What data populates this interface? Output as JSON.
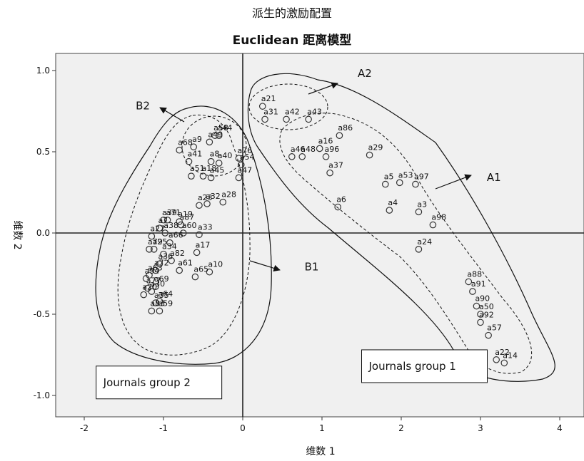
{
  "chart_data": {
    "type": "scatter",
    "title": "派生的激励配置",
    "subtitle": "Euclidean 距离模型",
    "xlabel": "维数 1",
    "ylabel": "维数 2",
    "xlim": [
      -2.2,
      4.2
    ],
    "ylim": [
      -1.1,
      1.1
    ],
    "xticks": [
      -2,
      -1,
      0,
      1,
      2,
      3,
      4
    ],
    "yticks": [
      -1.0,
      -0.5,
      0.0,
      0.5,
      1.0
    ],
    "xtick_labels": [
      "-2",
      "-1",
      "0",
      "1",
      "2",
      "3",
      "4"
    ],
    "ytick_labels": [
      "-1.0",
      "-0.5",
      "0.0",
      "0.5",
      "1.0"
    ],
    "grid": false,
    "background": "#f0f0f0",
    "marker_color": "#333333",
    "points": [
      {
        "label": "a21",
        "x": 0.25,
        "y": 0.78
      },
      {
        "label": "a31",
        "x": 0.28,
        "y": 0.7
      },
      {
        "label": "a42",
        "x": 0.55,
        "y": 0.7
      },
      {
        "label": "a43",
        "x": 0.83,
        "y": 0.7
      },
      {
        "label": "a86",
        "x": 1.22,
        "y": 0.6
      },
      {
        "label": "a16",
        "x": 0.97,
        "y": 0.52
      },
      {
        "label": "a96",
        "x": 1.05,
        "y": 0.47
      },
      {
        "label": "a29",
        "x": 1.6,
        "y": 0.48
      },
      {
        "label": "a46",
        "x": 0.62,
        "y": 0.47
      },
      {
        "label": "a48",
        "x": 0.75,
        "y": 0.47
      },
      {
        "label": "a37",
        "x": 1.1,
        "y": 0.37
      },
      {
        "label": "a5",
        "x": 1.8,
        "y": 0.3
      },
      {
        "label": "a53",
        "x": 1.98,
        "y": 0.31
      },
      {
        "label": "a97",
        "x": 2.18,
        "y": 0.3
      },
      {
        "label": "a4",
        "x": 1.85,
        "y": 0.14
      },
      {
        "label": "a6",
        "x": 1.2,
        "y": 0.16
      },
      {
        "label": "a3",
        "x": 2.22,
        "y": 0.13
      },
      {
        "label": "a98",
        "x": 2.4,
        "y": 0.05
      },
      {
        "label": "a24",
        "x": 2.22,
        "y": -0.1
      },
      {
        "label": "a88",
        "x": 2.85,
        "y": -0.3
      },
      {
        "label": "a91",
        "x": 2.9,
        "y": -0.36
      },
      {
        "label": "a90",
        "x": 2.95,
        "y": -0.45
      },
      {
        "label": "a50",
        "x": 3.0,
        "y": -0.5
      },
      {
        "label": "a92",
        "x": 3.0,
        "y": -0.55
      },
      {
        "label": "a57",
        "x": 3.1,
        "y": -0.63
      },
      {
        "label": "a22",
        "x": 3.2,
        "y": -0.78
      },
      {
        "label": "a14",
        "x": 3.3,
        "y": -0.8
      },
      {
        "label": "a9",
        "x": -0.62,
        "y": 0.53
      },
      {
        "label": "a58",
        "x": -0.35,
        "y": 0.6
      },
      {
        "label": "a49",
        "x": -0.42,
        "y": 0.56
      },
      {
        "label": "a44",
        "x": -0.3,
        "y": 0.6
      },
      {
        "label": "a68",
        "x": -0.8,
        "y": 0.51
      },
      {
        "label": "a8",
        "x": -0.4,
        "y": 0.44
      },
      {
        "label": "a40",
        "x": -0.3,
        "y": 0.43
      },
      {
        "label": "a76",
        "x": -0.05,
        "y": 0.46
      },
      {
        "label": "a41",
        "x": -0.68,
        "y": 0.44
      },
      {
        "label": "a51",
        "x": -0.65,
        "y": 0.35
      },
      {
        "label": "a18",
        "x": -0.5,
        "y": 0.35
      },
      {
        "label": "a54",
        "x": -0.02,
        "y": 0.42
      },
      {
        "label": "a45",
        "x": -0.4,
        "y": 0.34
      },
      {
        "label": "a47",
        "x": -0.05,
        "y": 0.34
      },
      {
        "label": "a23",
        "x": -0.55,
        "y": 0.17
      },
      {
        "label": "a32",
        "x": -0.45,
        "y": 0.18
      },
      {
        "label": "a28",
        "x": -0.25,
        "y": 0.19
      },
      {
        "label": "a39",
        "x": -1.0,
        "y": 0.08
      },
      {
        "label": "a71",
        "x": -0.95,
        "y": 0.08
      },
      {
        "label": "a19",
        "x": -0.8,
        "y": 0.07
      },
      {
        "label": "a87",
        "x": -0.78,
        "y": 0.05
      },
      {
        "label": "a7",
        "x": -1.05,
        "y": 0.03
      },
      {
        "label": "a38",
        "x": -0.98,
        "y": 0.0
      },
      {
        "label": "a60",
        "x": -0.75,
        "y": 0.0
      },
      {
        "label": "a27",
        "x": -1.15,
        "y": -0.02
      },
      {
        "label": "a66",
        "x": -0.92,
        "y": -0.06
      },
      {
        "label": "a33",
        "x": -0.55,
        "y": -0.01
      },
      {
        "label": "a79",
        "x": -1.18,
        "y": -0.1
      },
      {
        "label": "a25",
        "x": -1.12,
        "y": -0.1
      },
      {
        "label": "a34",
        "x": -1.0,
        "y": -0.13
      },
      {
        "label": "a82",
        "x": -0.9,
        "y": -0.17
      },
      {
        "label": "a36",
        "x": -1.05,
        "y": -0.19
      },
      {
        "label": "a17",
        "x": -0.58,
        "y": -0.12
      },
      {
        "label": "a72",
        "x": -1.1,
        "y": -0.23
      },
      {
        "label": "a63",
        "x": -1.18,
        "y": -0.26
      },
      {
        "label": "a94",
        "x": -1.22,
        "y": -0.28
      },
      {
        "label": "a61",
        "x": -0.8,
        "y": -0.23
      },
      {
        "label": "a10",
        "x": -0.42,
        "y": -0.24
      },
      {
        "label": "a69",
        "x": -1.1,
        "y": -0.33
      },
      {
        "label": "a65",
        "x": -0.6,
        "y": -0.27
      },
      {
        "label": "a77",
        "x": -1.2,
        "y": -0.34
      },
      {
        "label": "a30",
        "x": -1.15,
        "y": -0.36
      },
      {
        "label": "a20",
        "x": -1.25,
        "y": -0.38
      },
      {
        "label": "a64",
        "x": -1.05,
        "y": -0.42
      },
      {
        "label": "a35",
        "x": -1.1,
        "y": -0.43
      },
      {
        "label": "a83",
        "x": -1.15,
        "y": -0.48
      },
      {
        "label": "a59",
        "x": -1.05,
        "y": -0.48
      },
      {
        "label": "A1",
        "x": -0.7,
        "y": -0.47
      },
      {
        "label": "A2",
        "x": -0.65,
        "y": -0.5
      },
      {
        "label": "B1",
        "x": -0.58,
        "y": -0.54
      },
      {
        "label": "B2",
        "x": -0.32,
        "y": -0.57
      },
      {
        "label": "Journals group 1",
        "x": -1.12,
        "y": -0.59
      },
      {
        "label": "Journals group 2",
        "x": -0.9,
        "y": -0.6
      }
    ],
    "annotations": [
      {
        "label": "A2",
        "x": 1.45,
        "y": 0.96
      },
      {
        "label": "B2",
        "x": -1.35,
        "y": 0.76
      },
      {
        "label": "A1",
        "x": 3.08,
        "y": 0.32
      },
      {
        "label": "B1",
        "x": 0.78,
        "y": -0.23
      }
    ],
    "group_boxes": [
      {
        "label": "Journals group 1",
        "x": 1.5,
        "y": -0.82
      },
      {
        "label": "Journals group 2",
        "x": -1.85,
        "y": -0.92
      }
    ]
  }
}
